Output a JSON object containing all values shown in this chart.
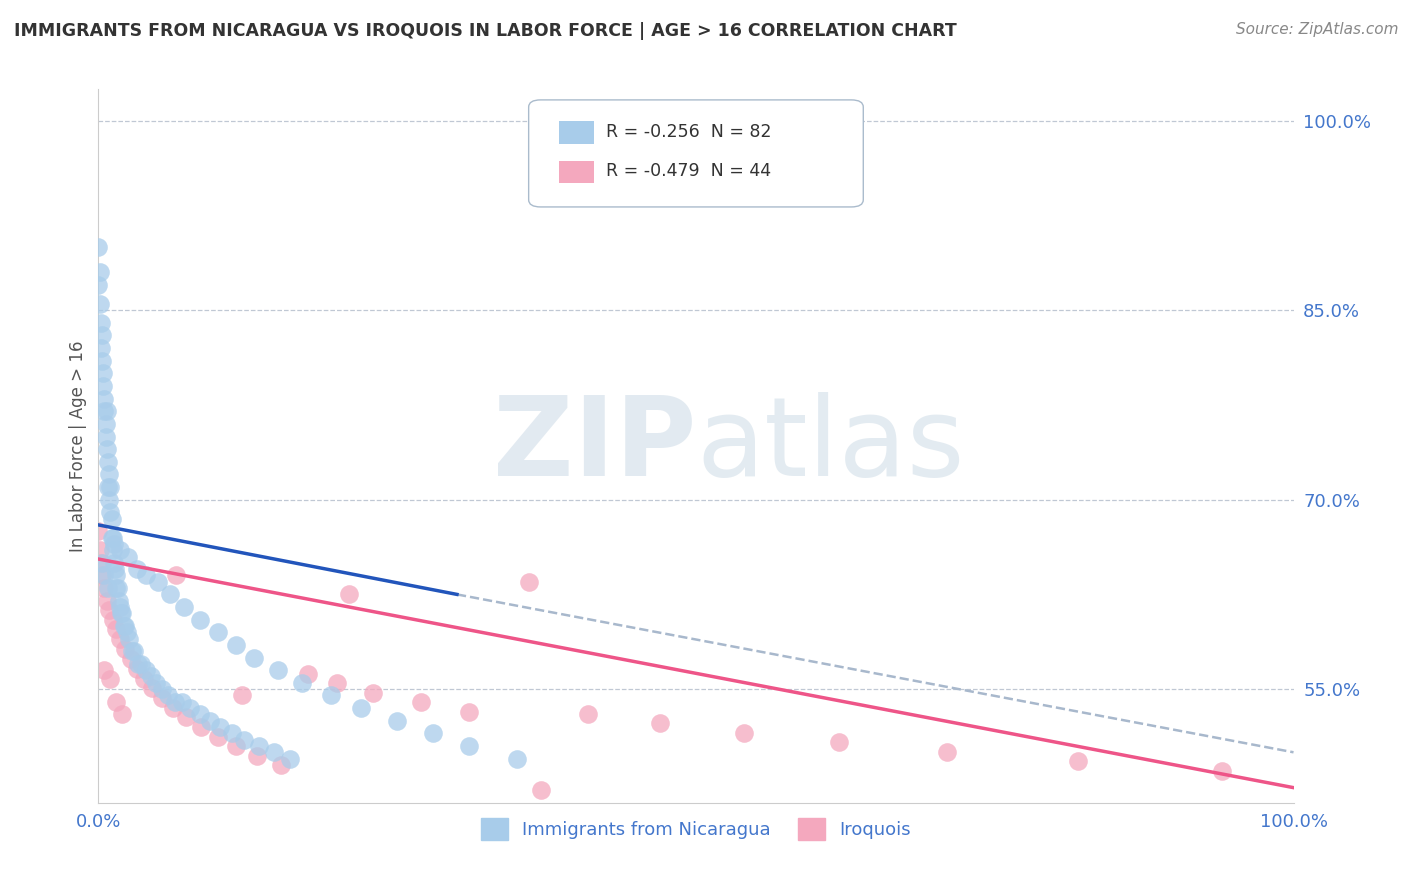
{
  "title": "IMMIGRANTS FROM NICARAGUA VS IROQUOIS IN LABOR FORCE | AGE > 16 CORRELATION CHART",
  "source": "Source: ZipAtlas.com",
  "ylabel": "In Labor Force | Age > 16",
  "xlim": [
    0.0,
    1.0
  ],
  "ylim": [
    0.46,
    1.025
  ],
  "ytick_labels": [
    "55.0%",
    "70.0%",
    "85.0%",
    "100.0%"
  ],
  "ytick_values": [
    0.55,
    0.7,
    0.85,
    1.0
  ],
  "xtick_labels": [
    "0.0%",
    "100.0%"
  ],
  "xtick_values": [
    0.0,
    1.0
  ],
  "color_blue": "#A8CCEA",
  "color_pink": "#F4A8BE",
  "line_color_blue": "#2255BB",
  "line_color_pink": "#EE5588",
  "line_color_gray": "#A8B8CC",
  "title_color": "#333333",
  "label_color": "#4477CC",
  "background_color": "#FFFFFF",
  "blue_line_x0": 0.0,
  "blue_line_x1": 0.3,
  "blue_line_y0": 0.68,
  "blue_line_y1": 0.625,
  "gray_line_x0": 0.3,
  "gray_line_x1": 1.0,
  "gray_line_y0": 0.625,
  "gray_line_y1": 0.5,
  "pink_line_x0": 0.0,
  "pink_line_x1": 1.0,
  "pink_line_y0": 0.653,
  "pink_line_y1": 0.472,
  "blue_x": [
    0.0,
    0.0,
    0.001,
    0.001,
    0.002,
    0.002,
    0.003,
    0.003,
    0.004,
    0.004,
    0.005,
    0.005,
    0.006,
    0.006,
    0.007,
    0.007,
    0.008,
    0.008,
    0.009,
    0.009,
    0.01,
    0.01,
    0.011,
    0.011,
    0.012,
    0.012,
    0.013,
    0.013,
    0.014,
    0.015,
    0.015,
    0.016,
    0.017,
    0.018,
    0.019,
    0.02,
    0.021,
    0.022,
    0.024,
    0.026,
    0.028,
    0.03,
    0.033,
    0.036,
    0.04,
    0.044,
    0.048,
    0.053,
    0.058,
    0.064,
    0.07,
    0.077,
    0.085,
    0.093,
    0.102,
    0.112,
    0.122,
    0.134,
    0.147,
    0.16,
    0.018,
    0.025,
    0.032,
    0.04,
    0.05,
    0.06,
    0.072,
    0.085,
    0.1,
    0.115,
    0.13,
    0.15,
    0.17,
    0.195,
    0.22,
    0.25,
    0.28,
    0.31,
    0.35,
    0.003,
    0.005,
    0.008
  ],
  "blue_y": [
    0.9,
    0.87,
    0.88,
    0.855,
    0.84,
    0.82,
    0.81,
    0.83,
    0.8,
    0.79,
    0.78,
    0.77,
    0.76,
    0.75,
    0.77,
    0.74,
    0.73,
    0.71,
    0.72,
    0.7,
    0.71,
    0.69,
    0.685,
    0.67,
    0.67,
    0.66,
    0.665,
    0.65,
    0.645,
    0.64,
    0.63,
    0.63,
    0.62,
    0.615,
    0.61,
    0.61,
    0.6,
    0.6,
    0.595,
    0.59,
    0.58,
    0.58,
    0.57,
    0.57,
    0.565,
    0.56,
    0.555,
    0.55,
    0.545,
    0.54,
    0.54,
    0.535,
    0.53,
    0.525,
    0.52,
    0.515,
    0.51,
    0.505,
    0.5,
    0.495,
    0.66,
    0.655,
    0.645,
    0.64,
    0.635,
    0.625,
    0.615,
    0.605,
    0.595,
    0.585,
    0.575,
    0.565,
    0.555,
    0.545,
    0.535,
    0.525,
    0.515,
    0.505,
    0.495,
    0.65,
    0.64,
    0.63
  ],
  "pink_x": [
    0.0,
    0.001,
    0.002,
    0.003,
    0.005,
    0.007,
    0.009,
    0.012,
    0.015,
    0.018,
    0.022,
    0.027,
    0.032,
    0.038,
    0.045,
    0.053,
    0.062,
    0.073,
    0.086,
    0.1,
    0.115,
    0.133,
    0.153,
    0.175,
    0.2,
    0.23,
    0.27,
    0.31,
    0.36,
    0.41,
    0.47,
    0.54,
    0.62,
    0.71,
    0.82,
    0.94,
    0.005,
    0.01,
    0.015,
    0.02,
    0.065,
    0.12,
    0.21,
    0.37
  ],
  "pink_y": [
    0.675,
    0.66,
    0.65,
    0.64,
    0.63,
    0.62,
    0.613,
    0.605,
    0.598,
    0.59,
    0.582,
    0.574,
    0.566,
    0.558,
    0.551,
    0.543,
    0.535,
    0.528,
    0.52,
    0.512,
    0.505,
    0.497,
    0.49,
    0.562,
    0.555,
    0.547,
    0.54,
    0.532,
    0.635,
    0.53,
    0.523,
    0.515,
    0.508,
    0.5,
    0.493,
    0.485,
    0.565,
    0.558,
    0.54,
    0.53,
    0.64,
    0.545,
    0.625,
    0.47
  ]
}
